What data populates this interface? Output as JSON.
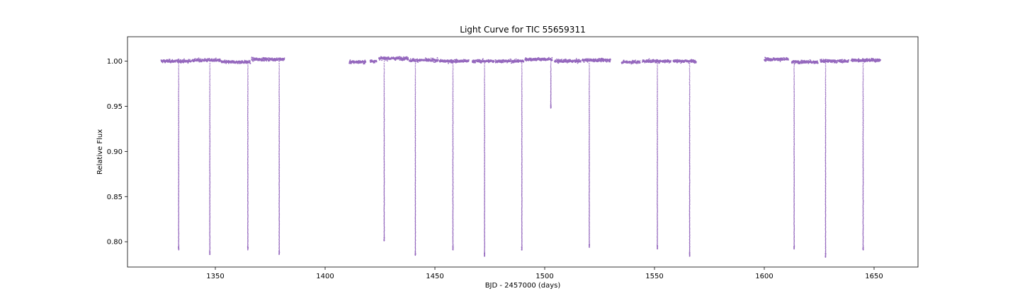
{
  "chart_data": {
    "type": "scatter",
    "title": "Light Curve for TIC 55659311",
    "xlabel": "BJD - 2457000 (days)",
    "ylabel": "Relative Flux",
    "xlim": [
      1310,
      1670
    ],
    "ylim": [
      0.772,
      1.027
    ],
    "xticks": [
      1350,
      1400,
      1450,
      1500,
      1550,
      1600,
      1650
    ],
    "yticks": [
      0.8,
      0.85,
      0.9,
      0.95,
      1.0
    ],
    "xtick_labels": [
      "1350",
      "1400",
      "1450",
      "1500",
      "1550",
      "1600",
      "1650"
    ],
    "ytick_labels": [
      "0.80",
      "0.85",
      "0.90",
      "0.95",
      "1.00"
    ],
    "grid": false,
    "marker_color": "#9467bd",
    "series": [
      {
        "data_segments": [
          {
            "start": 1325.3,
            "end": 1339.0,
            "level": 1.0
          },
          {
            "start": 1339.3,
            "end": 1352.3,
            "level": 1.001
          },
          {
            "start": 1352.6,
            "end": 1366.0,
            "level": 0.999
          },
          {
            "start": 1366.5,
            "end": 1381.5,
            "level": 1.002
          },
          {
            "start": 1411.0,
            "end": 1418.5,
            "level": 0.999
          },
          {
            "start": 1420.5,
            "end": 1423.5,
            "level": 1.0
          },
          {
            "start": 1424.5,
            "end": 1438.0,
            "level": 1.003
          },
          {
            "start": 1438.3,
            "end": 1451.5,
            "level": 1.001
          },
          {
            "start": 1452.0,
            "end": 1465.5,
            "level": 1.0
          },
          {
            "start": 1467.0,
            "end": 1477.0,
            "level": 1.0
          },
          {
            "start": 1477.5,
            "end": 1490.5,
            "level": 1.0
          },
          {
            "start": 1491.0,
            "end": 1503.5,
            "level": 1.002
          },
          {
            "start": 1504.5,
            "end": 1516.5,
            "level": 1.0
          },
          {
            "start": 1517.0,
            "end": 1530.0,
            "level": 1.001
          },
          {
            "start": 1535.0,
            "end": 1543.5,
            "level": 0.999
          },
          {
            "start": 1544.5,
            "end": 1557.5,
            "level": 1.0
          },
          {
            "start": 1558.5,
            "end": 1569.0,
            "level": 1.0
          },
          {
            "start": 1600.0,
            "end": 1611.0,
            "level": 1.002
          },
          {
            "start": 1612.5,
            "end": 1624.5,
            "level": 0.999
          },
          {
            "start": 1625.5,
            "end": 1638.5,
            "level": 1.0
          },
          {
            "start": 1639.5,
            "end": 1653.0,
            "level": 1.001
          }
        ],
        "transits": [
          {
            "t": 1333.3,
            "depth_min": 0.791
          },
          {
            "t": 1347.5,
            "depth_min": 0.786
          },
          {
            "t": 1364.8,
            "depth_min": 0.791
          },
          {
            "t": 1379.1,
            "depth_min": 0.786
          },
          {
            "t": 1426.9,
            "depth_min": 0.801
          },
          {
            "t": 1441.1,
            "depth_min": 0.785
          },
          {
            "t": 1458.2,
            "depth_min": 0.791
          },
          {
            "t": 1472.6,
            "depth_min": 0.784
          },
          {
            "t": 1489.6,
            "depth_min": 0.791
          },
          {
            "t": 1502.8,
            "depth_min": 0.948
          },
          {
            "t": 1520.3,
            "depth_min": 0.794
          },
          {
            "t": 1551.3,
            "depth_min": 0.792
          },
          {
            "t": 1566.0,
            "depth_min": 0.784
          },
          {
            "t": 1613.6,
            "depth_min": 0.792
          },
          {
            "t": 1627.9,
            "depth_min": 0.783
          },
          {
            "t": 1645.0,
            "depth_min": 0.791
          }
        ]
      }
    ]
  }
}
